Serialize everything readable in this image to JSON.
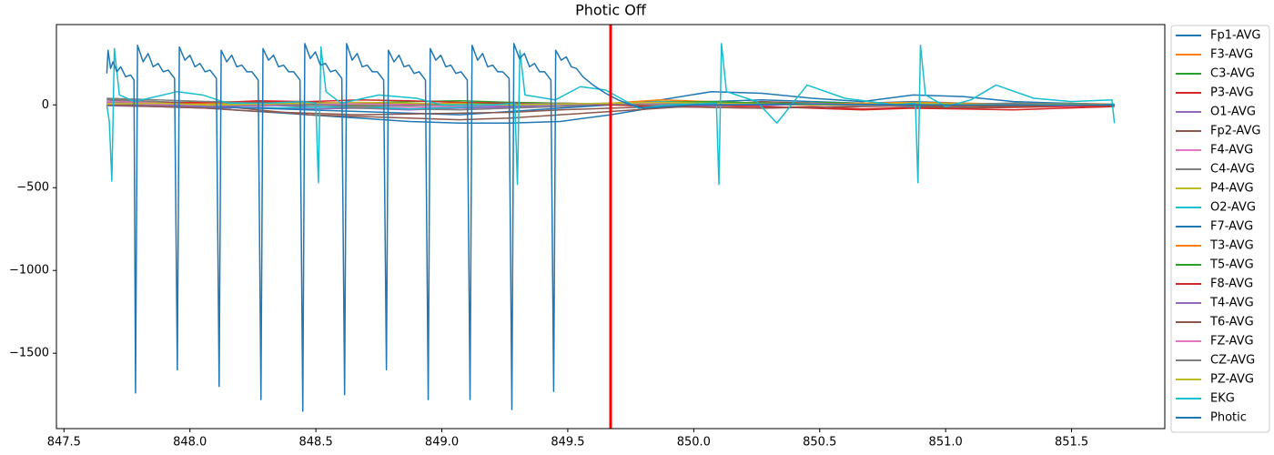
{
  "chart_data": {
    "type": "line",
    "title": "Photic Off",
    "x": [
      847.67,
      847.87,
      848.07,
      848.27,
      848.47,
      848.67,
      848.87,
      849.07,
      849.27,
      849.47,
      849.67,
      849.87,
      850.07,
      850.27,
      850.47,
      850.67,
      850.87,
      851.07,
      851.27,
      851.47,
      851.67
    ],
    "xlim": [
      847.47,
      851.87
    ],
    "xticks": [
      847.5,
      {
        "value": 848,
        "label": "848.0"
      },
      848.5,
      {
        "value": 849,
        "label": "849.0"
      },
      849.5,
      {
        "value": 850,
        "label": "850.0"
      },
      850.5,
      {
        "value": 851,
        "label": "851.0"
      },
      851.5
    ],
    "ylim": [
      -1955,
      485
    ],
    "yticks": [
      0,
      {
        "value": -500,
        "label": "−500"
      },
      {
        "value": -1000,
        "label": "−1000"
      },
      {
        "value": -1500,
        "label": "−1500"
      }
    ],
    "grid": false,
    "legend": "outside right",
    "vline": {
      "x": 849.67,
      "color": "#ff0000"
    },
    "series": [
      {
        "name": "Fp1-AVG",
        "color": "#1f77b4",
        "values": [
          30,
          10,
          -20,
          -40,
          -60,
          -80,
          -100,
          -110,
          -110,
          -100,
          -60,
          -10,
          20,
          30,
          20,
          10,
          20,
          10,
          0,
          10,
          0
        ]
      },
      {
        "name": "F3-AVG",
        "color": "#ff7f0e",
        "values": [
          10,
          5,
          -5,
          10,
          15,
          0,
          5,
          10,
          15,
          10,
          5,
          20,
          15,
          5,
          0,
          10,
          5,
          0,
          -5,
          10,
          5
        ]
      },
      {
        "name": "C3-AVG",
        "color": "#2ca02c",
        "values": [
          15,
          10,
          20,
          15,
          5,
          10,
          20,
          25,
          15,
          10,
          5,
          0,
          10,
          5,
          15,
          10,
          5,
          0,
          10,
          5,
          0
        ]
      },
      {
        "name": "P3-AVG",
        "color": "#d62728",
        "values": [
          20,
          15,
          10,
          25,
          20,
          30,
          25,
          15,
          10,
          5,
          0,
          -10,
          -15,
          -20,
          -10,
          -25,
          -15,
          -20,
          -15,
          -10,
          -5
        ]
      },
      {
        "name": "O1-AVG",
        "color": "#9467bd",
        "values": [
          -5,
          -10,
          -20,
          -15,
          -25,
          -20,
          -30,
          -20,
          -15,
          -10,
          5,
          10,
          0,
          -5,
          5,
          0,
          -10,
          -5,
          0,
          5,
          0
        ]
      },
      {
        "name": "Fp2-AVG",
        "color": "#8c564b",
        "values": [
          35,
          20,
          0,
          -30,
          -60,
          -70,
          -80,
          -90,
          -80,
          -60,
          -40,
          -20,
          0,
          20,
          10,
          0,
          -10,
          -20,
          -10,
          -5,
          0
        ]
      },
      {
        "name": "F4-AVG",
        "color": "#e377c2",
        "values": [
          20,
          15,
          10,
          5,
          -10,
          -20,
          -15,
          -10,
          -5,
          0,
          10,
          5,
          0,
          5,
          10,
          0,
          -5,
          0,
          5,
          0,
          0
        ]
      },
      {
        "name": "C4-AVG",
        "color": "#7f7f7f",
        "values": [
          30,
          20,
          10,
          0,
          -10,
          -20,
          -25,
          -30,
          -20,
          -10,
          0,
          10,
          15,
          10,
          5,
          0,
          -5,
          -10,
          -5,
          0,
          -5
        ]
      },
      {
        "name": "P4-AVG",
        "color": "#bcbd22",
        "values": [
          0,
          5,
          -5,
          0,
          5,
          10,
          0,
          -5,
          5,
          10,
          0,
          -5,
          0,
          10,
          5,
          0,
          -5,
          5,
          0,
          5,
          0
        ]
      },
      {
        "name": "O2-AVG",
        "color": "#17becf",
        "values": [
          0,
          -5,
          -10,
          -20,
          -15,
          -10,
          -25,
          -15,
          -5,
          0,
          10,
          20,
          15,
          10,
          5,
          0,
          -10,
          5,
          10,
          0,
          5
        ]
      },
      {
        "name": "F7-AVG",
        "color": "#1f77b4",
        "values": [
          10,
          0,
          -10,
          -20,
          -30,
          -40,
          -50,
          -60,
          -40,
          -20,
          0,
          30,
          80,
          70,
          40,
          20,
          60,
          50,
          20,
          10,
          0
        ]
      },
      {
        "name": "T3-AVG",
        "color": "#ff7f0e",
        "values": [
          5,
          0,
          10,
          5,
          0,
          -5,
          5,
          10,
          5,
          0,
          10,
          30,
          20,
          10,
          5,
          10,
          15,
          10,
          5,
          0,
          0
        ]
      },
      {
        "name": "T5-AVG",
        "color": "#2ca02c",
        "values": [
          0,
          5,
          0,
          10,
          5,
          0,
          -5,
          5,
          10,
          0,
          5,
          15,
          20,
          10,
          5,
          0,
          10,
          5,
          0,
          5,
          0
        ]
      },
      {
        "name": "F8-AVG",
        "color": "#d62728",
        "values": [
          5,
          10,
          15,
          20,
          15,
          10,
          5,
          0,
          10,
          5,
          0,
          -10,
          -5,
          -10,
          -20,
          -30,
          -20,
          -25,
          -30,
          -20,
          -10
        ]
      },
      {
        "name": "T4-AVG",
        "color": "#9467bd",
        "values": [
          0,
          -5,
          -10,
          -5,
          0,
          5,
          0,
          -5,
          -10,
          0,
          5,
          0,
          -5,
          5,
          0,
          -5,
          0,
          5,
          0,
          -5,
          0
        ]
      },
      {
        "name": "T6-AVG",
        "color": "#8c564b",
        "values": [
          0,
          -10,
          -20,
          -40,
          -50,
          -60,
          -55,
          -50,
          -45,
          -30,
          -20,
          -10,
          -15,
          -20,
          -15,
          -10,
          -5,
          -10,
          -5,
          0,
          -5
        ]
      },
      {
        "name": "FZ-AVG",
        "color": "#e377c2",
        "values": [
          10,
          5,
          0,
          5,
          10,
          5,
          0,
          -5,
          0,
          5,
          10,
          5,
          0,
          5,
          0,
          -5,
          0,
          5,
          0,
          5,
          0
        ]
      },
      {
        "name": "CZ-AVG",
        "color": "#7f7f7f",
        "values": [
          40,
          30,
          20,
          10,
          0,
          -10,
          -5,
          0,
          5,
          10,
          5,
          0,
          10,
          5,
          0,
          -5,
          0,
          5,
          10,
          5,
          0
        ]
      },
      {
        "name": "PZ-AVG",
        "color": "#bcbd22",
        "values": [
          5,
          10,
          0,
          5,
          10,
          15,
          10,
          5,
          0,
          5,
          10,
          15,
          10,
          5,
          0,
          5,
          10,
          5,
          0,
          5,
          0
        ]
      },
      {
        "name": "EKG",
        "color": "#17becf",
        "x": [
          847.67,
          847.68,
          847.69,
          847.7,
          847.72,
          847.78,
          847.95,
          848.05,
          848.15,
          848.3,
          848.45,
          848.5,
          848.51,
          848.52,
          848.54,
          848.6,
          848.75,
          848.9,
          849.0,
          849.2,
          849.29,
          849.3,
          849.31,
          849.33,
          849.45,
          849.55,
          849.65,
          849.78,
          849.9,
          850.09,
          850.1,
          850.11,
          850.13,
          850.25,
          850.33,
          850.45,
          850.6,
          850.8,
          850.88,
          850.89,
          850.9,
          850.92,
          851.0,
          851.1,
          851.2,
          851.35,
          851.5,
          851.66,
          851.67
        ],
        "values": [
          0,
          -100,
          -460,
          340,
          60,
          20,
          80,
          60,
          10,
          10,
          20,
          10,
          -470,
          350,
          80,
          10,
          60,
          40,
          0,
          0,
          10,
          -480,
          330,
          60,
          30,
          110,
          90,
          -20,
          0,
          10,
          -480,
          370,
          80,
          20,
          -110,
          120,
          40,
          0,
          10,
          -470,
          360,
          60,
          -10,
          30,
          120,
          40,
          20,
          30,
          -110
        ]
      },
      {
        "name": "Photic",
        "color": "#1f77b4",
        "x": [
          847.67,
          847.675,
          847.685,
          847.695,
          847.71,
          847.725,
          847.745,
          847.765,
          847.778,
          847.784,
          847.792,
          847.814,
          847.834,
          847.854,
          847.874,
          847.894,
          847.914,
          847.939,
          847.95,
          847.958,
          847.98,
          848.0,
          848.02,
          848.04,
          848.06,
          848.08,
          848.105,
          848.116,
          848.124,
          848.146,
          848.166,
          848.186,
          848.206,
          848.226,
          848.246,
          848.271,
          848.282,
          848.29,
          848.312,
          848.332,
          848.352,
          848.372,
          848.392,
          848.412,
          848.437,
          848.448,
          848.456,
          848.478,
          848.498,
          848.518,
          848.538,
          848.558,
          848.578,
          848.603,
          848.614,
          848.622,
          848.644,
          848.664,
          848.684,
          848.704,
          848.724,
          848.744,
          848.769,
          848.78,
          848.788,
          848.81,
          848.83,
          848.85,
          848.87,
          848.89,
          848.91,
          848.935,
          848.946,
          848.954,
          848.976,
          848.996,
          849.016,
          849.036,
          849.056,
          849.076,
          849.101,
          849.112,
          849.12,
          849.142,
          849.162,
          849.182,
          849.202,
          849.222,
          849.242,
          849.267,
          849.278,
          849.286,
          849.308,
          849.328,
          849.348,
          849.368,
          849.388,
          849.408,
          849.433,
          849.444,
          849.452,
          849.474,
          849.494,
          849.514,
          849.534,
          849.56,
          849.6,
          849.65,
          849.7,
          849.75,
          849.8,
          849.9,
          850.0,
          850.5,
          851.0,
          851.67
        ],
        "values": [
          190,
          330,
          220,
          260,
          200,
          230,
          170,
          180,
          150,
          -1740,
          360,
          260,
          310,
          230,
          250,
          200,
          210,
          160,
          -1600,
          350,
          270,
          300,
          230,
          250,
          200,
          210,
          160,
          -1700,
          330,
          260,
          300,
          230,
          240,
          200,
          200,
          150,
          -1780,
          340,
          270,
          300,
          230,
          240,
          200,
          200,
          150,
          -1850,
          370,
          280,
          320,
          240,
          250,
          200,
          210,
          160,
          -1750,
          370,
          270,
          310,
          230,
          240,
          200,
          200,
          150,
          -1600,
          330,
          260,
          300,
          230,
          240,
          190,
          200,
          150,
          -1780,
          340,
          270,
          300,
          230,
          240,
          190,
          200,
          150,
          -1780,
          360,
          270,
          310,
          230,
          240,
          200,
          200,
          160,
          -1840,
          370,
          280,
          310,
          230,
          250,
          200,
          200,
          150,
          -1730,
          330,
          270,
          290,
          230,
          220,
          170,
          120,
          70,
          30,
          0,
          -20,
          -10,
          0,
          5,
          0,
          0
        ]
      }
    ]
  }
}
